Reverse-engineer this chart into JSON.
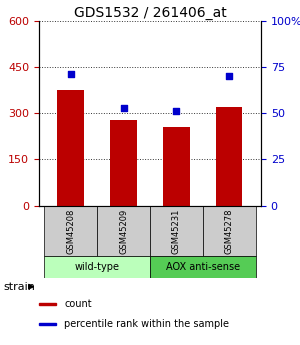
{
  "title": "GDS1532 / 261406_at",
  "samples": [
    "GSM45208",
    "GSM45209",
    "GSM45231",
    "GSM45278"
  ],
  "counts": [
    375,
    278,
    255,
    320
  ],
  "percentiles": [
    71,
    53,
    51,
    70
  ],
  "left_ylim": [
    0,
    600
  ],
  "right_ylim": [
    0,
    100
  ],
  "left_yticks": [
    0,
    150,
    300,
    450,
    600
  ],
  "right_yticks": [
    0,
    25,
    50,
    75,
    100
  ],
  "bar_color": "#bb0000",
  "dot_color": "#0000cc",
  "grid_color": "#000000",
  "groups": [
    {
      "label": "wild-type",
      "indices": [
        0,
        1
      ],
      "color": "#bbffbb"
    },
    {
      "label": "AOX anti-sense",
      "indices": [
        2,
        3
      ],
      "color": "#55cc55"
    }
  ],
  "strain_label": "strain",
  "legend_items": [
    {
      "label": "count",
      "color": "#bb0000"
    },
    {
      "label": "percentile rank within the sample",
      "color": "#0000cc"
    }
  ],
  "title_fontsize": 10,
  "tick_fontsize": 8,
  "bar_width": 0.5,
  "sample_box_color": "#cccccc",
  "fig_bg": "#ffffff"
}
